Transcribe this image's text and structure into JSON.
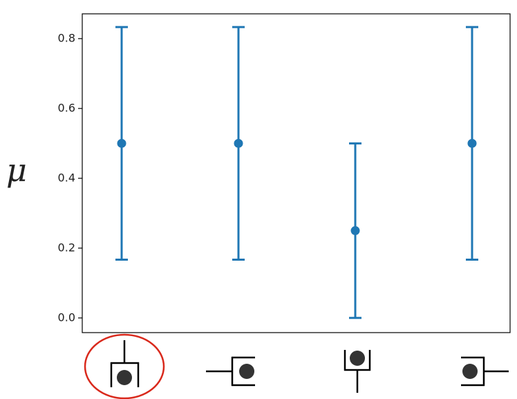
{
  "chart_data": {
    "type": "errorbar",
    "y_label": "μ",
    "categories": [
      null,
      null,
      null,
      null
    ],
    "series": [
      {
        "color": "#1f77b4",
        "values": [
          0.5,
          0.5,
          0.25,
          0.5
        ],
        "errors": [
          0.333,
          0.333,
          0.25,
          0.333
        ]
      }
    ],
    "ylim": [
      -0.042,
      0.871
    ],
    "yticks": [
      {
        "value": 0,
        "label": "0.0"
      },
      0.2,
      0.4,
      0.6,
      0.8
    ]
  }
}
